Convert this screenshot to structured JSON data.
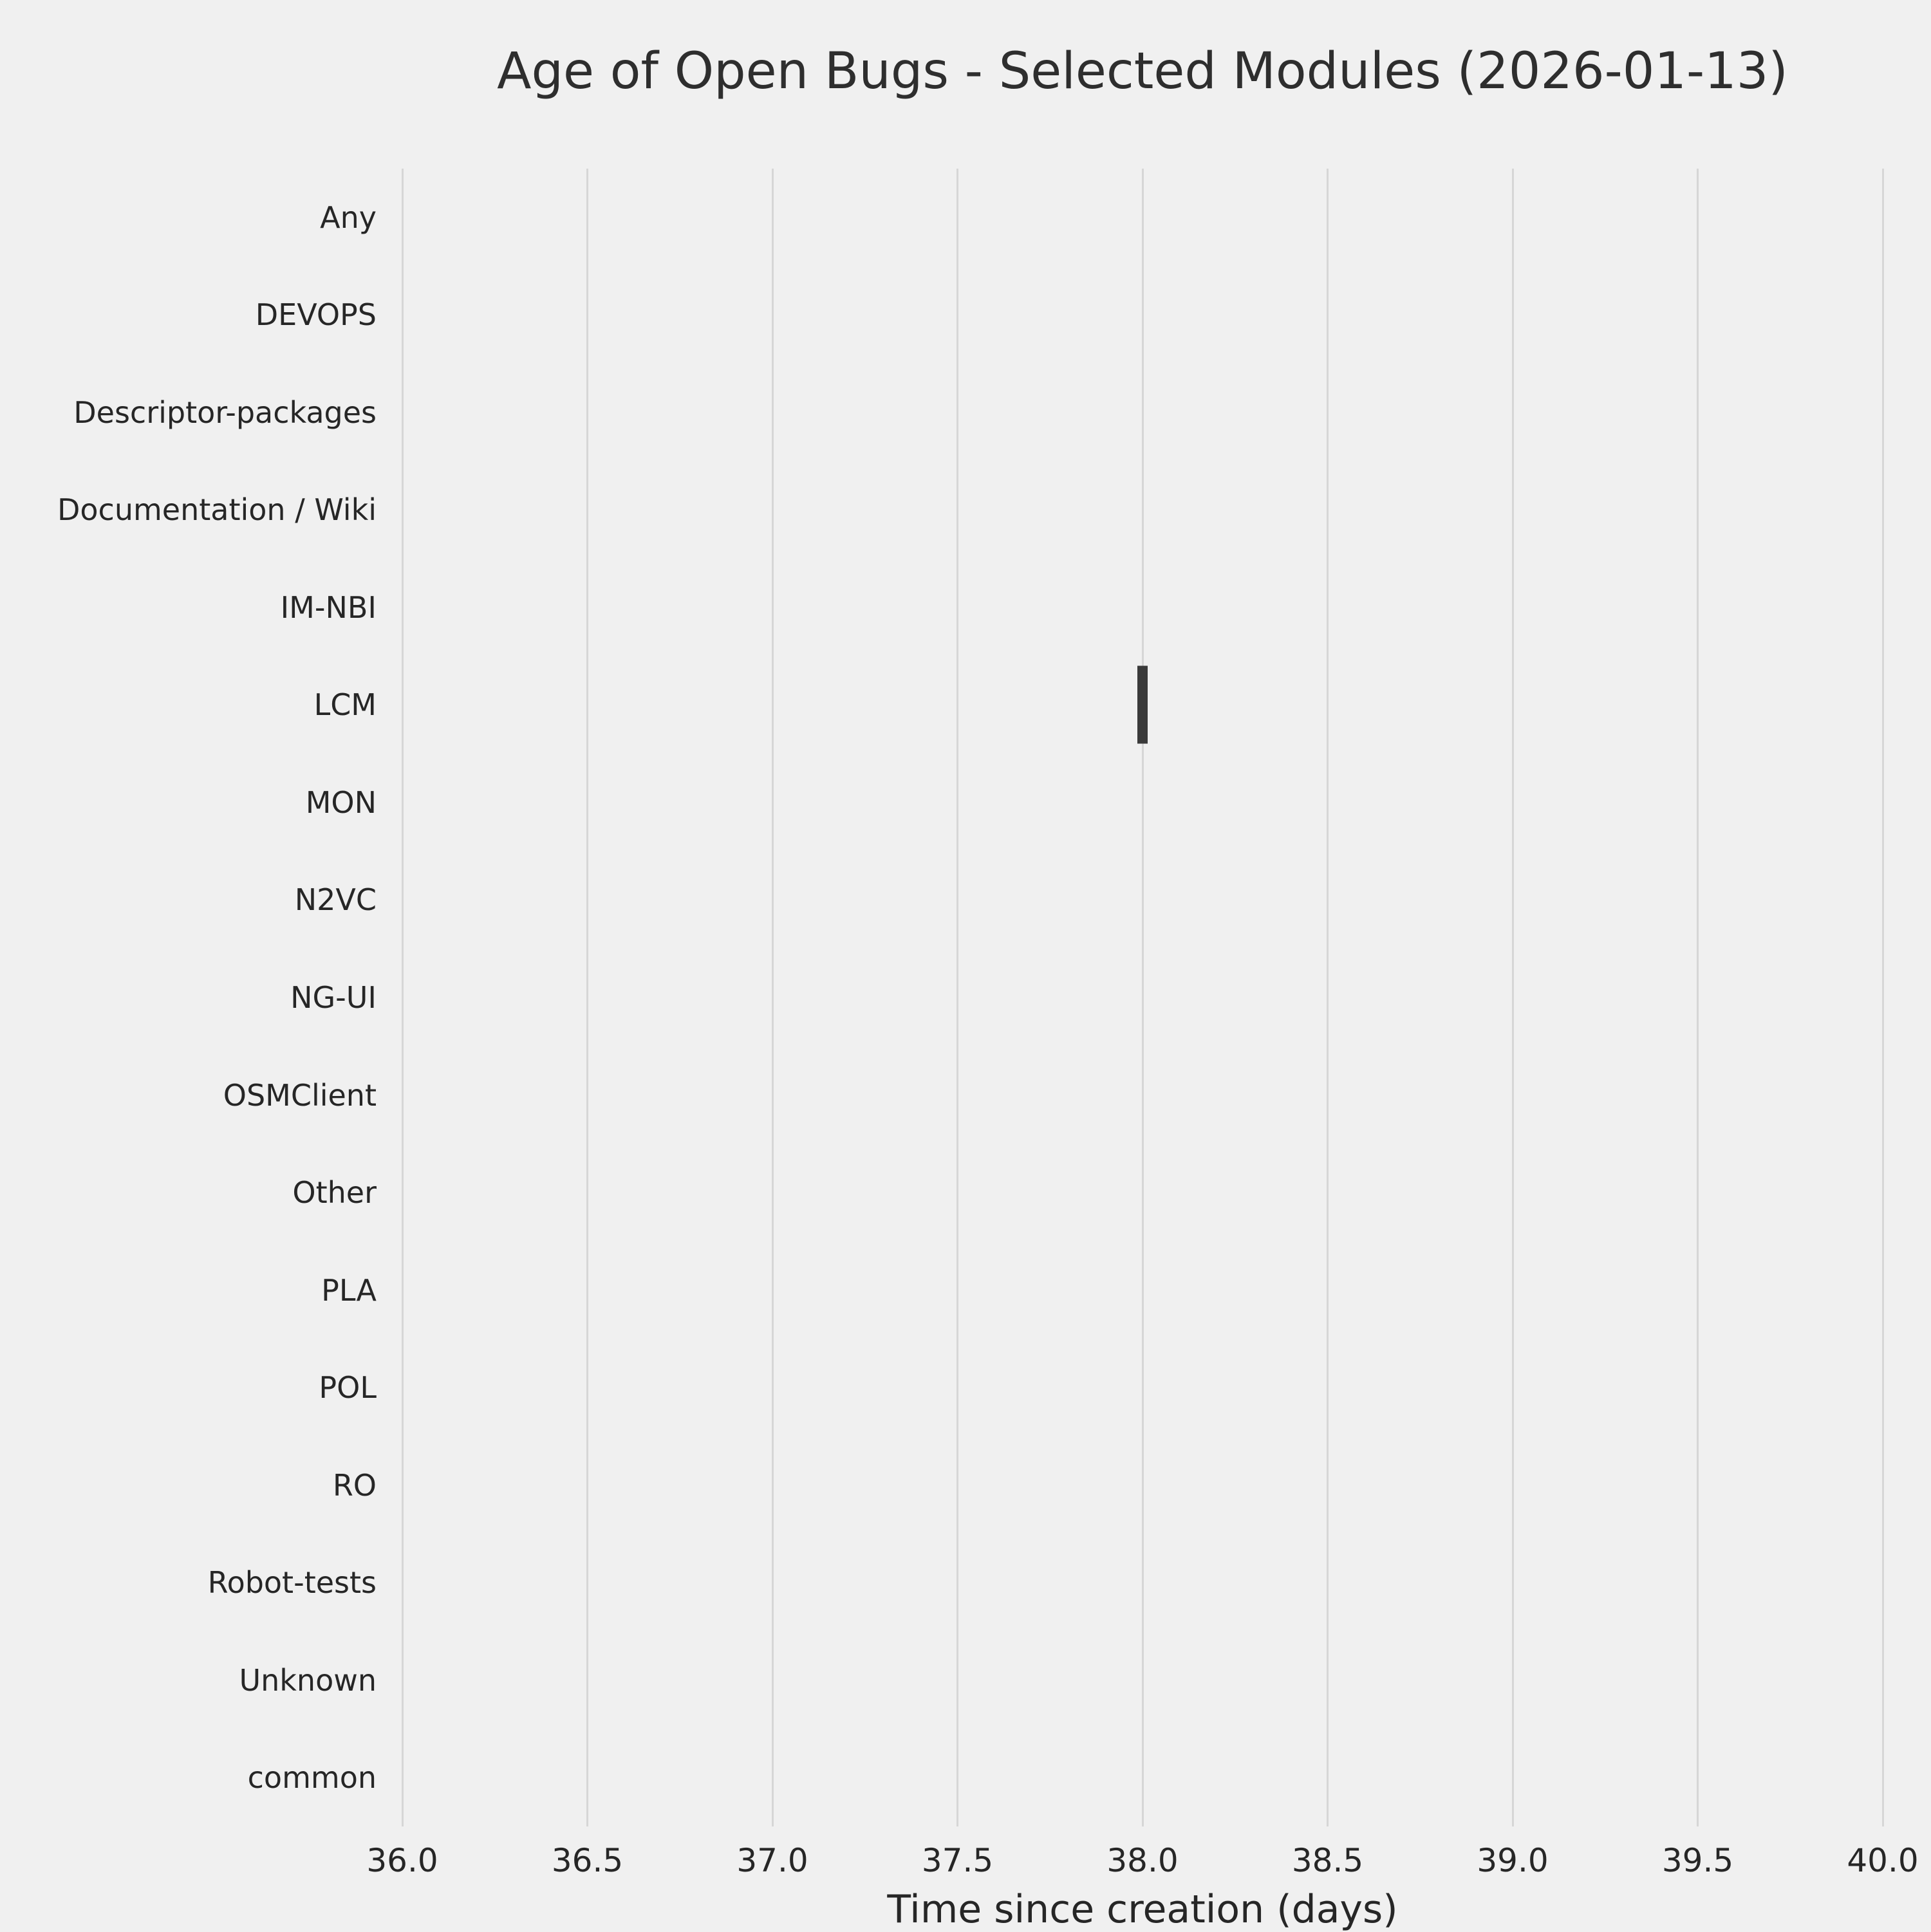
{
  "chart_data": {
    "type": "boxplot",
    "orientation": "horizontal",
    "title": "Age of Open Bugs - Selected Modules (2026-01-13)",
    "xlabel": "Time since creation (days)",
    "ylabel": "",
    "categories": [
      "Any",
      "DEVOPS",
      "Descriptor-packages",
      "Documentation / Wiki",
      "IM-NBI",
      "LCM",
      "MON",
      "N2VC",
      "NG-UI",
      "OSMClient",
      "Other",
      "PLA",
      "POL",
      "RO",
      "Robot-tests",
      "Unknown",
      "common"
    ],
    "xlim": [
      36.0,
      40.0
    ],
    "xtick_labels": [
      "36.0",
      "36.5",
      "37.0",
      "37.5",
      "38.0",
      "38.5",
      "39.0",
      "39.5",
      "40.0"
    ],
    "grid": "vertical-only",
    "legend": "none",
    "boxes": [
      {
        "category": "LCM",
        "min": 38.0,
        "q1": 38.0,
        "median": 38.0,
        "q3": 38.0,
        "max": 38.0,
        "note": "single narrow dark box at 38 days; all other modules have no data shown"
      }
    ],
    "colors": {
      "background": "#f0f0f0",
      "grid": "#d6d6d6",
      "box": "#3a3a3a",
      "text": "#262626"
    }
  }
}
